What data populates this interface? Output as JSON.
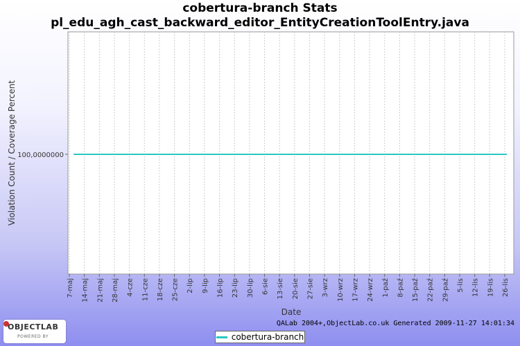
{
  "header": {
    "title_line1": "cobertura-branch  Stats",
    "title_line2": "pl_edu_agh_cast_backward_editor_EntityCreationToolEntry.java"
  },
  "chart_data": {
    "type": "line",
    "title": "cobertura-branch  Stats",
    "subtitle": "pl_edu_agh_cast_backward_editor_EntityCreationToolEntry.java",
    "xlabel": "Date",
    "ylabel": "Violation Count / Coverage Percent",
    "x_categories": [
      "7-maj",
      "14-maj",
      "21-maj",
      "28-maj",
      "4-cze",
      "11-cze",
      "18-cze",
      "25-cze",
      "2-lip",
      "9-lip",
      "16-lip",
      "23-lip",
      "30-lip",
      "6-sie",
      "13-sie",
      "20-sie",
      "27-sie",
      "3-wrz",
      "10-wrz",
      "17-wrz",
      "24-wrz",
      "1-paź",
      "8-paź",
      "15-paź",
      "22-paź",
      "29-paź",
      "5-lis",
      "12-lis",
      "19-lis",
      "26-lis"
    ],
    "y_tick_labels": [
      "100,0000000"
    ],
    "grid": true,
    "legend_position": "bottom",
    "series": [
      {
        "name": "cobertura-branch",
        "color": "#29c7c0",
        "points": [
          {
            "x": "2009-05-09",
            "y": 100.0
          },
          {
            "x": "2009-11-27",
            "y": 100.0
          }
        ]
      }
    ]
  },
  "legend": {
    "label": "cobertura-branch"
  },
  "footer": {
    "text": "QALab 2004+,ObjectLab.co.uk Generated 2009-11-27 14:01:34"
  },
  "logo": {
    "main": "OBJECTLAB",
    "sub": "POWERED BY"
  }
}
